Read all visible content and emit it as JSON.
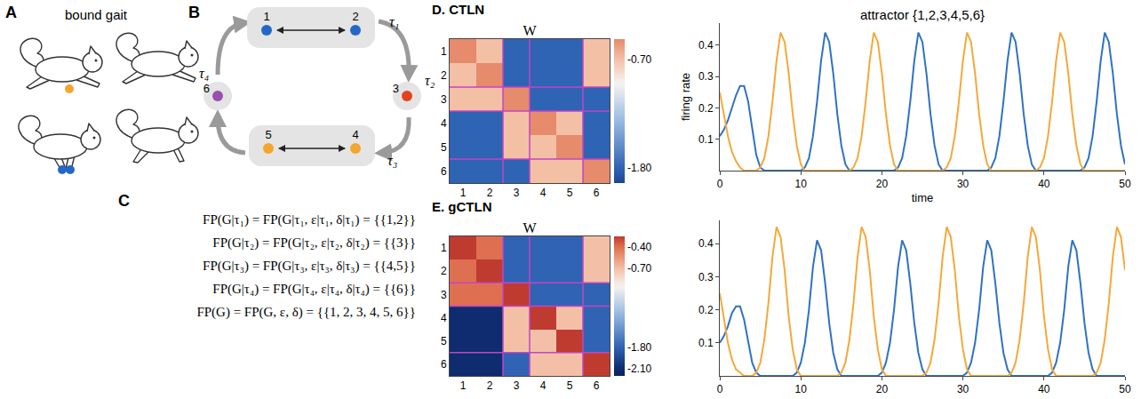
{
  "panels": {
    "A": {
      "letter": "A",
      "title": "bound gait"
    },
    "B": {
      "letter": "B",
      "nodes": [
        {
          "label": "1",
          "color": "#2368c6"
        },
        {
          "label": "2",
          "color": "#2368c6"
        },
        {
          "label": "3",
          "color": "#e2431f"
        },
        {
          "label": "4",
          "color": "#f4a52c"
        },
        {
          "label": "5",
          "color": "#f4a52c"
        },
        {
          "label": "6",
          "color": "#9a4fae"
        }
      ],
      "groups": [
        {
          "label": "τ₁",
          "nodes": [
            "1",
            "2"
          ]
        },
        {
          "label": "τ₂",
          "nodes": [
            "3"
          ]
        },
        {
          "label": "τ₃",
          "nodes": [
            "4",
            "5"
          ]
        },
        {
          "label": "τ₄",
          "nodes": [
            "6"
          ]
        }
      ]
    },
    "C": {
      "letter": "C",
      "equations": [
        "FP(G|τ₁) = FP(G|τ₁, ε|τ₁, δ|τ₁) = {{1,2}}",
        "FP(G|τ₂) = FP(G|τ₂, ε|τ₂, δ|τ₂) = {{3}}",
        "FP(G|τ₃) = FP(G|τ₃, ε|τ₃, δ|τ₃) = {{4,5}}",
        "FP(G|τ₄) = FP(G|τ₄, ε|τ₄, δ|τ₄) = {{6}}",
        "FP(G) = FP(G, ε, δ) = {{1, 2, 3, 4, 5, 6}}"
      ]
    }
  },
  "chart_data": [
    {
      "type": "heatmap",
      "panel": "D. CTLN",
      "title": "W",
      "x": [
        1,
        2,
        3,
        4,
        5,
        6
      ],
      "y": [
        1,
        2,
        3,
        4,
        5,
        6
      ],
      "xlim": [
        0.5,
        6.5
      ],
      "ylim": [
        0.5,
        6.5
      ],
      "xticks": [
        1,
        2,
        3,
        4,
        5,
        6
      ],
      "yticks": [
        1,
        2,
        3,
        4,
        5,
        6
      ],
      "cells": [
        [
          0,
          -0.7,
          -1.8,
          -1.8,
          -1.8,
          -0.7
        ],
        [
          -0.7,
          0,
          -1.8,
          -1.8,
          -1.8,
          -0.7
        ],
        [
          -0.7,
          -0.7,
          0,
          -1.8,
          -1.8,
          -1.8
        ],
        [
          -1.8,
          -1.8,
          -0.7,
          0,
          -0.7,
          -1.8
        ],
        [
          -1.8,
          -1.8,
          -0.7,
          -0.7,
          0,
          -1.8
        ],
        [
          -1.8,
          -1.8,
          -1.8,
          -0.7,
          -0.7,
          0
        ]
      ],
      "colorbar": {
        "range": [
          -1.95,
          -0.5
        ],
        "ticks": [
          {
            "value": -0.7,
            "label": "-0.70"
          },
          {
            "value": -1.8,
            "label": "-1.80"
          }
        ]
      }
    },
    {
      "type": "line",
      "title": "attractor {1,2,3,4,5,6}",
      "x_label": "time",
      "y_label": "firing rate",
      "grid": false,
      "xlim": [
        0,
        50
      ],
      "ylim": [
        0,
        0.47
      ],
      "xticks": [
        0,
        10,
        20,
        30,
        40,
        50
      ],
      "yticks": [
        0.1,
        0.2,
        0.3,
        0.4
      ],
      "x": [
        0,
        0.5,
        1,
        1.5,
        2,
        2.5,
        3,
        3.5,
        4,
        4.5,
        5,
        5.5,
        6,
        6.5,
        7,
        7.5,
        8,
        8.5,
        9,
        9.5,
        10,
        10.5,
        11,
        11.5,
        12,
        12.5,
        13,
        13.5,
        14,
        14.5,
        15,
        15.5,
        16,
        16.5,
        17,
        17.5,
        18,
        18.5,
        19,
        19.5,
        20,
        20.5,
        21,
        21.5,
        22,
        22.5,
        23,
        23.5,
        24,
        24.5,
        25,
        25.5,
        26,
        26.5,
        27,
        27.5,
        28,
        28.5,
        29,
        29.5,
        30,
        30.5,
        31,
        31.5,
        32,
        32.5,
        33,
        33.5,
        34,
        34.5,
        35,
        35.5,
        36,
        36.5,
        37,
        37.5,
        38,
        38.5,
        39,
        39.5,
        40,
        40.5,
        41,
        41.5,
        42,
        42.5,
        43,
        43.5,
        44,
        44.5,
        45,
        45.5,
        46,
        46.5,
        47,
        47.5,
        48,
        48.5,
        49,
        49.5,
        50
      ],
      "series": [
        {
          "color": "#2f72c4",
          "values": [
            0.11,
            0.13,
            0.16,
            0.2,
            0.24,
            0.27,
            0.27,
            0.22,
            0.13,
            0.05,
            0.01,
            0,
            0,
            0,
            0,
            0,
            0,
            0,
            0,
            0,
            0,
            0.01,
            0.04,
            0.11,
            0.22,
            0.35,
            0.44,
            0.41,
            0.31,
            0.18,
            0.08,
            0.02,
            0,
            0,
            0,
            0,
            0,
            0,
            0,
            0,
            0,
            0,
            0,
            0,
            0.01,
            0.04,
            0.11,
            0.22,
            0.35,
            0.44,
            0.41,
            0.31,
            0.18,
            0.08,
            0.02,
            0,
            0,
            0,
            0,
            0,
            0,
            0,
            0,
            0,
            0,
            0,
            0,
            0.01,
            0.04,
            0.11,
            0.22,
            0.35,
            0.44,
            0.41,
            0.31,
            0.18,
            0.08,
            0.02,
            0,
            0,
            0,
            0,
            0,
            0,
            0,
            0,
            0,
            0,
            0,
            0,
            0.01,
            0.04,
            0.11,
            0.22,
            0.35,
            0.44,
            0.41,
            0.31,
            0.18,
            0.08,
            0.02
          ]
        },
        {
          "color": "#f3a93a",
          "values": [
            0.25,
            0.18,
            0.11,
            0.06,
            0.03,
            0.01,
            0,
            0,
            0,
            0,
            0.01,
            0.04,
            0.11,
            0.22,
            0.35,
            0.44,
            0.41,
            0.31,
            0.18,
            0.08,
            0.02,
            0,
            0,
            0,
            0,
            0,
            0,
            0,
            0,
            0,
            0,
            0,
            0,
            0.01,
            0.04,
            0.11,
            0.22,
            0.35,
            0.44,
            0.41,
            0.31,
            0.18,
            0.08,
            0.02,
            0,
            0,
            0,
            0,
            0,
            0,
            0,
            0,
            0,
            0,
            0,
            0,
            0.01,
            0.04,
            0.11,
            0.22,
            0.35,
            0.44,
            0.41,
            0.31,
            0.18,
            0.08,
            0.02,
            0,
            0,
            0,
            0,
            0,
            0,
            0,
            0,
            0,
            0,
            0,
            0,
            0.01,
            0.04,
            0.11,
            0.22,
            0.35,
            0.44,
            0.41,
            0.31,
            0.18,
            0.08,
            0.02,
            0,
            0,
            0,
            0,
            0,
            0,
            0,
            0,
            0,
            0,
            0
          ]
        }
      ]
    },
    {
      "type": "heatmap",
      "panel": "E. gCTLN",
      "title": "W",
      "x": [
        1,
        2,
        3,
        4,
        5,
        6
      ],
      "y": [
        1,
        2,
        3,
        4,
        5,
        6
      ],
      "xlim": [
        0.5,
        6.5
      ],
      "ylim": [
        0.5,
        6.5
      ],
      "xticks": [
        1,
        2,
        3,
        4,
        5,
        6
      ],
      "yticks": [
        1,
        2,
        3,
        4,
        5,
        6
      ],
      "cells": [
        [
          0,
          -0.4,
          -1.8,
          -1.8,
          -1.8,
          -0.7
        ],
        [
          -0.4,
          0,
          -1.8,
          -1.8,
          -1.8,
          -0.7
        ],
        [
          -0.4,
          -0.4,
          0,
          -1.8,
          -1.8,
          -1.8
        ],
        [
          -2.1,
          -2.1,
          -0.7,
          0,
          -0.7,
          -1.8
        ],
        [
          -2.1,
          -2.1,
          -0.7,
          -0.7,
          0,
          -1.8
        ],
        [
          -2.1,
          -2.1,
          -1.8,
          -0.7,
          -0.7,
          0
        ]
      ],
      "colorbar": {
        "range": [
          -2.2,
          -0.25
        ],
        "ticks": [
          {
            "value": -0.4,
            "label": "-0.40"
          },
          {
            "value": -0.7,
            "label": "-0.70"
          },
          {
            "value": -1.8,
            "label": "-1.80"
          },
          {
            "value": -2.1,
            "label": "-2.10"
          }
        ]
      }
    },
    {
      "type": "line",
      "grid": false,
      "xlim": [
        0,
        50
      ],
      "ylim": [
        0,
        0.47
      ],
      "xticks": [
        0,
        10,
        20,
        30,
        40,
        50
      ],
      "yticks": [
        0.1,
        0.2,
        0.3,
        0.4
      ],
      "x": [
        0,
        0.5,
        1,
        1.5,
        2,
        2.5,
        3,
        3.5,
        4,
        4.5,
        5,
        5.5,
        6,
        6.5,
        7,
        7.5,
        8,
        8.5,
        9,
        9.5,
        10,
        10.5,
        11,
        11.5,
        12,
        12.5,
        13,
        13.5,
        14,
        14.5,
        15,
        15.5,
        16,
        16.5,
        17,
        17.5,
        18,
        18.5,
        19,
        19.5,
        20,
        20.5,
        21,
        21.5,
        22,
        22.5,
        23,
        23.5,
        24,
        24.5,
        25,
        25.5,
        26,
        26.5,
        27,
        27.5,
        28,
        28.5,
        29,
        29.5,
        30,
        30.5,
        31,
        31.5,
        32,
        32.5,
        33,
        33.5,
        34,
        34.5,
        35,
        35.5,
        36,
        36.5,
        37,
        37.5,
        38,
        38.5,
        39,
        39.5,
        40,
        40.5,
        41,
        41.5,
        42,
        42.5,
        43,
        43.5,
        44,
        44.5,
        45,
        45.5,
        46,
        46.5,
        47,
        47.5,
        48,
        48.5,
        49,
        49.5,
        50
      ],
      "series": [
        {
          "color": "#2f72c4",
          "values": [
            0.1,
            0.12,
            0.15,
            0.19,
            0.21,
            0.21,
            0.17,
            0.1,
            0.04,
            0.01,
            0,
            0,
            0,
            0,
            0,
            0,
            0,
            0,
            0,
            0.01,
            0.04,
            0.1,
            0.2,
            0.33,
            0.41,
            0.38,
            0.28,
            0.16,
            0.07,
            0.02,
            0,
            0,
            0,
            0,
            0,
            0,
            0,
            0,
            0,
            0,
            0.01,
            0.04,
            0.1,
            0.2,
            0.33,
            0.41,
            0.38,
            0.28,
            0.16,
            0.07,
            0.02,
            0,
            0,
            0,
            0,
            0,
            0,
            0,
            0,
            0,
            0,
            0.01,
            0.04,
            0.1,
            0.2,
            0.33,
            0.41,
            0.38,
            0.28,
            0.16,
            0.07,
            0.02,
            0,
            0,
            0,
            0,
            0,
            0,
            0,
            0,
            0,
            0,
            0.01,
            0.04,
            0.1,
            0.2,
            0.33,
            0.41,
            0.38,
            0.28,
            0.16,
            0.07,
            0.02,
            0,
            0,
            0,
            0,
            0,
            0,
            0,
            0
          ]
        },
        {
          "color": "#f3a93a",
          "values": [
            0.25,
            0.17,
            0.1,
            0.05,
            0.02,
            0.01,
            0,
            0,
            0,
            0.01,
            0.04,
            0.11,
            0.22,
            0.36,
            0.45,
            0.42,
            0.32,
            0.18,
            0.08,
            0.02,
            0,
            0,
            0,
            0,
            0,
            0,
            0,
            0,
            0,
            0,
            0.01,
            0.04,
            0.11,
            0.22,
            0.36,
            0.45,
            0.42,
            0.32,
            0.18,
            0.08,
            0.02,
            0,
            0,
            0,
            0,
            0,
            0,
            0,
            0,
            0,
            0,
            0.01,
            0.04,
            0.11,
            0.22,
            0.36,
            0.45,
            0.42,
            0.32,
            0.18,
            0.08,
            0.02,
            0,
            0,
            0,
            0,
            0,
            0,
            0,
            0,
            0,
            0,
            0.01,
            0.04,
            0.11,
            0.22,
            0.36,
            0.45,
            0.42,
            0.32,
            0.18,
            0.08,
            0.02,
            0,
            0,
            0,
            0,
            0,
            0,
            0,
            0,
            0,
            0,
            0.01,
            0.04,
            0.11,
            0.22,
            0.36,
            0.45,
            0.42,
            0.32
          ]
        }
      ]
    }
  ]
}
